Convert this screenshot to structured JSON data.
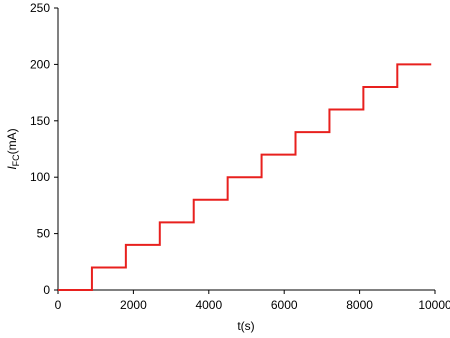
{
  "chart_data": {
    "type": "line",
    "step": true,
    "xlabel": "t(s)",
    "ylabel": {
      "symbol": "I",
      "subscript": "FC",
      "unit": "(mA)"
    },
    "x": [
      0,
      900,
      900,
      1800,
      1800,
      2700,
      2700,
      3600,
      3600,
      4500,
      4500,
      5400,
      5400,
      6300,
      6300,
      7200,
      7200,
      8100,
      8100,
      9000,
      9000,
      9900
    ],
    "series": [
      {
        "color": "#e8201e",
        "values": [
          0,
          0,
          20,
          20,
          40,
          40,
          60,
          60,
          80,
          80,
          100,
          100,
          120,
          120,
          140,
          140,
          160,
          160,
          180,
          180,
          200,
          200
        ]
      }
    ],
    "xlim": [
      0,
      10000
    ],
    "xticks": [
      0,
      2000,
      4000,
      6000,
      8000,
      10000
    ],
    "ylim": [
      0,
      250
    ],
    "yticks": [
      0,
      50,
      100,
      150,
      200,
      250
    ],
    "grid": false
  }
}
